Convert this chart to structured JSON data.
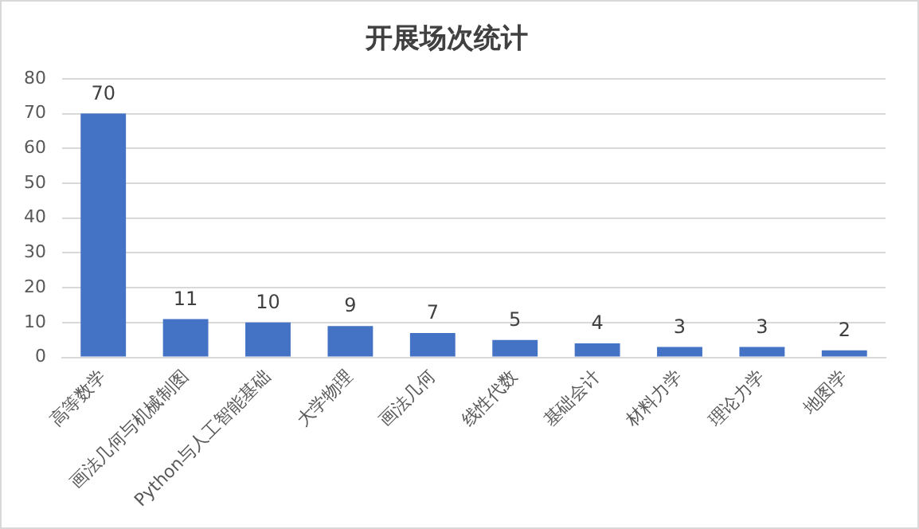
{
  "chart_data": {
    "type": "bar",
    "title": "开展场次统计",
    "categories": [
      "高等数学",
      "画法几何与机械制图",
      "Python与人工智能基础",
      "大学物理",
      "画法几何",
      "线性代数",
      "基础会计",
      "材料力学",
      "理论力学",
      "地图学"
    ],
    "values": [
      70,
      11,
      10,
      9,
      7,
      5,
      4,
      3,
      3,
      2
    ],
    "color": "#4472c4",
    "ylim": [
      0,
      80
    ],
    "yticks": [
      0,
      10,
      20,
      30,
      40,
      50,
      60,
      70,
      80
    ],
    "grid": "y",
    "data_labels": true,
    "legend": false
  }
}
